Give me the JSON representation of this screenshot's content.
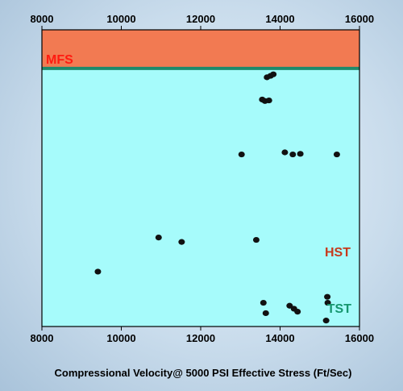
{
  "chart_data": {
    "type": "scatter",
    "xlabel": "Compressional Velocity@ 5000 PSI Effective Stress (Ft/Sec)",
    "xlim": [
      8000,
      16000
    ],
    "x_ticks": [
      "8000",
      "10000",
      "12000",
      "14000",
      "16000"
    ],
    "grid": false,
    "zones": [
      {
        "label": "HST",
        "color": "#f27a52",
        "text_color": "#c63a1c",
        "region": "upper"
      },
      {
        "label": "TST",
        "color": "#a6fbfb",
        "text_color": "#16966e",
        "region": "lower"
      }
    ],
    "boundary": {
      "label": "MFS",
      "color": "#1f8a6b",
      "text_color": "#ff1a10",
      "relative_level": 0.87
    },
    "point_color": "#111111",
    "series": [
      {
        "points": [
          {
            "x": 13670,
            "y": 0.84
          },
          {
            "x": 13760,
            "y": 0.845
          },
          {
            "x": 13830,
            "y": 0.85
          },
          {
            "x": 13550,
            "y": 0.765
          },
          {
            "x": 13620,
            "y": 0.76
          },
          {
            "x": 13720,
            "y": 0.762
          },
          {
            "x": 13030,
            "y": 0.58
          },
          {
            "x": 14120,
            "y": 0.587
          },
          {
            "x": 14320,
            "y": 0.58
          },
          {
            "x": 14510,
            "y": 0.582
          },
          {
            "x": 15430,
            "y": 0.58
          },
          {
            "x": 10940,
            "y": 0.3
          },
          {
            "x": 11520,
            "y": 0.285
          },
          {
            "x": 13400,
            "y": 0.292
          },
          {
            "x": 9410,
            "y": 0.185
          },
          {
            "x": 15190,
            "y": 0.1
          },
          {
            "x": 15200,
            "y": 0.08
          },
          {
            "x": 13580,
            "y": 0.08
          },
          {
            "x": 13640,
            "y": 0.045
          },
          {
            "x": 14240,
            "y": 0.07
          },
          {
            "x": 14350,
            "y": 0.06
          },
          {
            "x": 14440,
            "y": 0.05
          },
          {
            "x": 15160,
            "y": 0.02
          }
        ]
      }
    ]
  }
}
